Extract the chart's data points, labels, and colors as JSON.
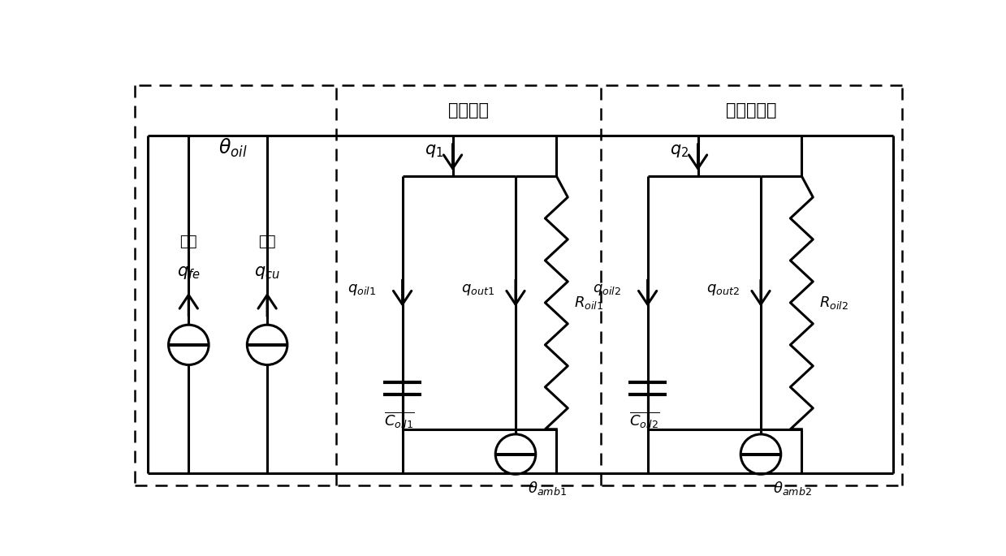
{
  "bg_color": "#ffffff",
  "lc": "#000000",
  "lw": 2.2,
  "lw_dash": 1.8,
  "label_benti": "本体部分",
  "label_sanreqi": "散热器部分",
  "label_tiemao": "鐵损",
  "label_tongsun": "铜损",
  "figw": 12.39,
  "figh": 6.85
}
